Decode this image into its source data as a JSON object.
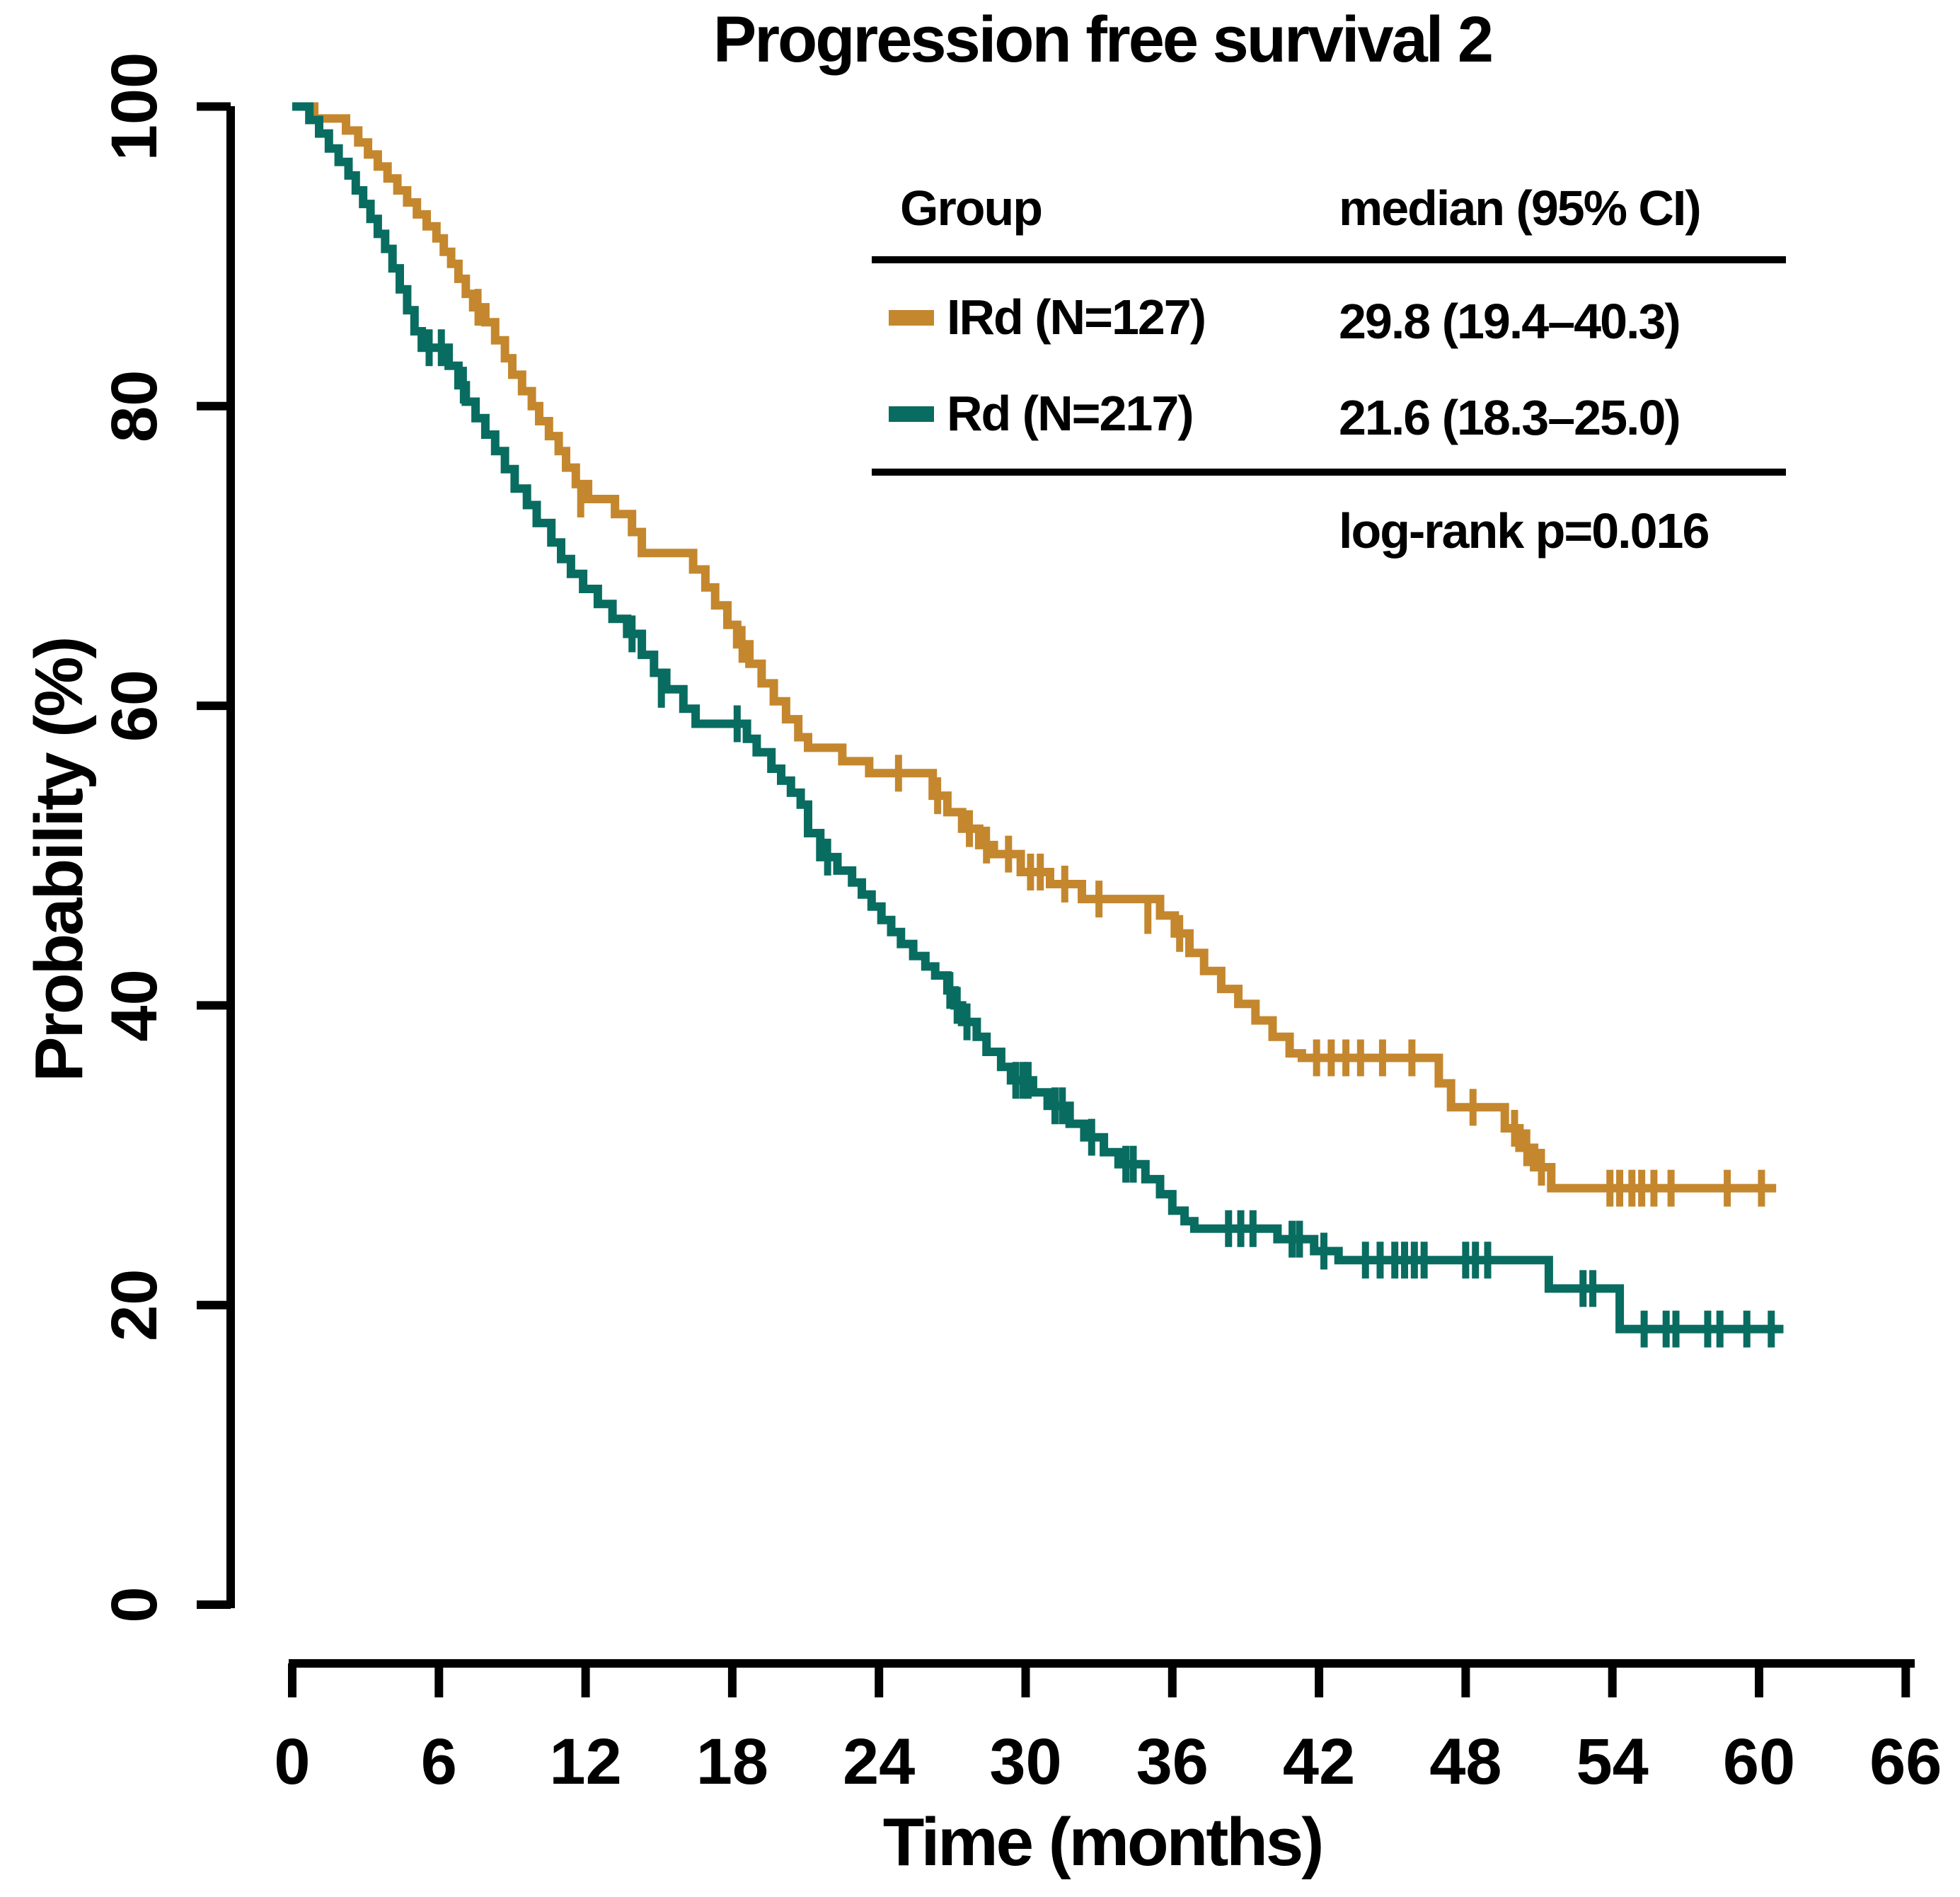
{
  "title": "Progression free survival 2",
  "legend_table": {
    "group_header": "Group",
    "median_header": "median (95% CI)",
    "rows": [
      {
        "label": "IRd (N=127)",
        "median": "29.8 (19.4–40.3)",
        "color": "#C4872E"
      },
      {
        "label": "Rd (N=217)",
        "median": "21.6 (18.3–25.0)",
        "color": "#096C60"
      }
    ],
    "footer": "log-rank p=0.016"
  },
  "colors": {
    "ird": "#C4872E",
    "rd": "#096C60",
    "axis": "#000000",
    "text": "#000000",
    "background": "#ffffff"
  },
  "chart_data": {
    "type": "line",
    "subtype": "kaplan-meier-step",
    "title": "Progression free survival 2",
    "xlabel": "Time (months)",
    "ylabel": "Probability (%)",
    "xlim": [
      0,
      66
    ],
    "ylim": [
      0,
      100
    ],
    "xticks": [
      0,
      6,
      12,
      18,
      24,
      30,
      36,
      42,
      48,
      54,
      60,
      66
    ],
    "yticks": [
      0,
      20,
      40,
      60,
      80,
      100
    ],
    "grid": false,
    "legend_position": "top-right-table",
    "annotations": [
      "log-rank p=0.016"
    ],
    "series": [
      {
        "name": "IRd (N=127)",
        "n": 127,
        "median": 29.8,
        "ci95": "19.4–40.3",
        "color": "#C4872E",
        "steps": [
          [
            0,
            100
          ],
          [
            0.9,
            99.2
          ],
          [
            2.2,
            98.4
          ],
          [
            2.7,
            97.6
          ],
          [
            3.1,
            96.8
          ],
          [
            3.5,
            96
          ],
          [
            3.9,
            95.2
          ],
          [
            4.3,
            94.4
          ],
          [
            4.7,
            93.6
          ],
          [
            5.1,
            92.8
          ],
          [
            5.5,
            92
          ],
          [
            5.9,
            91.2
          ],
          [
            6.2,
            90.3
          ],
          [
            6.5,
            89.5
          ],
          [
            6.8,
            88.5
          ],
          [
            7.1,
            87.5
          ],
          [
            7.4,
            86.6
          ],
          [
            7.9,
            85.6
          ],
          [
            8.3,
            84.4
          ],
          [
            8.7,
            83.2
          ],
          [
            9,
            82.1
          ],
          [
            9.4,
            81
          ],
          [
            9.8,
            80
          ],
          [
            10.1,
            79
          ],
          [
            10.5,
            78
          ],
          [
            10.9,
            77
          ],
          [
            11.2,
            75.9
          ],
          [
            11.6,
            74.8
          ],
          [
            12.1,
            73.8
          ],
          [
            13.2,
            72.8
          ],
          [
            13.9,
            71.6
          ],
          [
            14.3,
            70.2
          ],
          [
            16.4,
            69.1
          ],
          [
            16.9,
            67.9
          ],
          [
            17.3,
            66.7
          ],
          [
            17.8,
            65.4
          ],
          [
            18.2,
            64.1
          ],
          [
            18.7,
            62.8
          ],
          [
            19.2,
            61.5
          ],
          [
            19.7,
            60.3
          ],
          [
            20.2,
            59.1
          ],
          [
            20.7,
            57.9
          ],
          [
            21.1,
            57.2
          ],
          [
            22.5,
            56.3
          ],
          [
            23.6,
            55.5
          ],
          [
            26.2,
            54
          ],
          [
            26.8,
            52.9
          ],
          [
            27.4,
            51.8
          ],
          [
            28.1,
            50.7
          ],
          [
            28.7,
            50.1
          ],
          [
            29.8,
            48.9
          ],
          [
            31,
            48.1
          ],
          [
            32.3,
            47.1
          ],
          [
            35.5,
            46
          ],
          [
            36.1,
            44.8
          ],
          [
            36.7,
            43.5
          ],
          [
            37.3,
            42.3
          ],
          [
            38,
            41.1
          ],
          [
            38.7,
            40.1
          ],
          [
            39.4,
            39
          ],
          [
            40.1,
            37.9
          ],
          [
            40.8,
            36.8
          ],
          [
            41.3,
            36.5
          ],
          [
            46.9,
            34.8
          ],
          [
            47.4,
            33.2
          ],
          [
            49.6,
            31.8
          ],
          [
            50.2,
            30.5
          ],
          [
            50.8,
            29.2
          ],
          [
            51.5,
            27.8
          ],
          [
            60.7,
            27.8
          ]
        ],
        "censors": [
          [
            7.6,
            86.6
          ],
          [
            11.8,
            73.8
          ],
          [
            18.4,
            64.1
          ],
          [
            24.8,
            55.5
          ],
          [
            26.4,
            54
          ],
          [
            27.7,
            51.8
          ],
          [
            28.4,
            50.7
          ],
          [
            29.3,
            50.1
          ],
          [
            30.2,
            48.9
          ],
          [
            30.6,
            48.9
          ],
          [
            31.6,
            48.1
          ],
          [
            33,
            47.1
          ],
          [
            35,
            46
          ],
          [
            36.3,
            44.8
          ],
          [
            41.9,
            36.5
          ],
          [
            42.5,
            36.5
          ],
          [
            43.1,
            36.5
          ],
          [
            43.7,
            36.5
          ],
          [
            44.6,
            36.5
          ],
          [
            45.8,
            36.5
          ],
          [
            48.3,
            33.2
          ],
          [
            50,
            31.8
          ],
          [
            50.5,
            30.5
          ],
          [
            51.1,
            29.2
          ],
          [
            53.9,
            27.8
          ],
          [
            54.3,
            27.8
          ],
          [
            54.8,
            27.8
          ],
          [
            55.2,
            27.8
          ],
          [
            55.7,
            27.8
          ],
          [
            56.4,
            27.8
          ],
          [
            58.7,
            27.8
          ],
          [
            60.1,
            27.8
          ]
        ]
      },
      {
        "name": "Rd (N=217)",
        "n": 217,
        "median": 21.6,
        "ci95": "18.3–25.0",
        "color": "#096C60",
        "steps": [
          [
            0,
            100
          ],
          [
            0.7,
            99.1
          ],
          [
            1.1,
            98.2
          ],
          [
            1.5,
            97.2
          ],
          [
            1.9,
            96.3
          ],
          [
            2.3,
            95.4
          ],
          [
            2.6,
            94.4
          ],
          [
            2.9,
            93.5
          ],
          [
            3.2,
            92.5
          ],
          [
            3.5,
            91.5
          ],
          [
            3.8,
            90.5
          ],
          [
            4.1,
            89.2
          ],
          [
            4.4,
            87.8
          ],
          [
            4.7,
            86.4
          ],
          [
            5,
            85
          ],
          [
            5.3,
            83.9
          ],
          [
            6.4,
            82.7
          ],
          [
            6.8,
            81.4
          ],
          [
            7.1,
            80.3
          ],
          [
            7.5,
            79.2
          ],
          [
            7.9,
            78.1
          ],
          [
            8.3,
            77
          ],
          [
            8.7,
            75.8
          ],
          [
            9.1,
            74.5
          ],
          [
            9.6,
            73.4
          ],
          [
            10,
            72.2
          ],
          [
            10.6,
            70.9
          ],
          [
            11,
            69.8
          ],
          [
            11.4,
            68.8
          ],
          [
            11.9,
            67.8
          ],
          [
            12.5,
            66.8
          ],
          [
            13.1,
            65.8
          ],
          [
            13.7,
            64.8
          ],
          [
            14.3,
            63.4
          ],
          [
            14.8,
            62.2
          ],
          [
            15.3,
            61.1
          ],
          [
            16,
            59.8
          ],
          [
            16.5,
            58.8
          ],
          [
            18.6,
            57.8
          ],
          [
            19,
            56.9
          ],
          [
            19.6,
            55.8
          ],
          [
            20,
            55
          ],
          [
            20.4,
            54.2
          ],
          [
            20.8,
            53.4
          ],
          [
            21.1,
            51.5
          ],
          [
            21.6,
            49.9
          ],
          [
            22.3,
            49
          ],
          [
            22.9,
            48.2
          ],
          [
            23.3,
            47.4
          ],
          [
            23.7,
            46.6
          ],
          [
            24.1,
            45.7
          ],
          [
            24.5,
            44.9
          ],
          [
            24.9,
            44.1
          ],
          [
            25.4,
            43.3
          ],
          [
            25.9,
            42.6
          ],
          [
            26.3,
            42
          ],
          [
            26.8,
            41
          ],
          [
            27.1,
            40
          ],
          [
            27.4,
            38.9
          ],
          [
            28,
            37.9
          ],
          [
            28.4,
            36.9
          ],
          [
            29,
            35.9
          ],
          [
            29.4,
            35
          ],
          [
            30.3,
            34.2
          ],
          [
            30.9,
            33.3
          ],
          [
            31.8,
            32.1
          ],
          [
            32.4,
            31.2
          ],
          [
            33.2,
            30.2
          ],
          [
            33.8,
            29.4
          ],
          [
            34.9,
            28.4
          ],
          [
            35.5,
            27.4
          ],
          [
            36,
            26.3
          ],
          [
            36.5,
            25.6
          ],
          [
            36.9,
            25.1
          ],
          [
            40.3,
            24.4
          ],
          [
            41.8,
            23.6
          ],
          [
            42.8,
            23
          ],
          [
            51.4,
            21.1
          ],
          [
            54.3,
            18.4
          ],
          [
            61,
            18.4
          ]
        ],
        "censors": [
          [
            5.6,
            83.9
          ],
          [
            6.1,
            83.9
          ],
          [
            7,
            81.4
          ],
          [
            13.9,
            64.8
          ],
          [
            15.1,
            61.1
          ],
          [
            18.2,
            58.8
          ],
          [
            21.9,
            49.9
          ],
          [
            26.9,
            41
          ],
          [
            27.2,
            40
          ],
          [
            27.6,
            38.9
          ],
          [
            29.6,
            35
          ],
          [
            29.9,
            35
          ],
          [
            30.1,
            35
          ],
          [
            31.2,
            33.3
          ],
          [
            31.5,
            33.3
          ],
          [
            32.7,
            31.2
          ],
          [
            34.1,
            29.4
          ],
          [
            34.4,
            29.4
          ],
          [
            38.3,
            25.1
          ],
          [
            38.8,
            25.1
          ],
          [
            39.3,
            25.1
          ],
          [
            40.9,
            24.4
          ],
          [
            41.2,
            24.4
          ],
          [
            42.2,
            23.6
          ],
          [
            43.9,
            23
          ],
          [
            44.5,
            23
          ],
          [
            45.1,
            23
          ],
          [
            45.5,
            23
          ],
          [
            45.9,
            23
          ],
          [
            46.3,
            23
          ],
          [
            48,
            23
          ],
          [
            48.4,
            23
          ],
          [
            48.9,
            23
          ],
          [
            52.8,
            21.1
          ],
          [
            53.2,
            21.1
          ],
          [
            55.3,
            18.4
          ],
          [
            56.2,
            18.4
          ],
          [
            56.6,
            18.4
          ],
          [
            57.9,
            18.4
          ],
          [
            58.4,
            18.4
          ],
          [
            59.5,
            18.4
          ],
          [
            60.5,
            18.4
          ]
        ]
      }
    ]
  }
}
